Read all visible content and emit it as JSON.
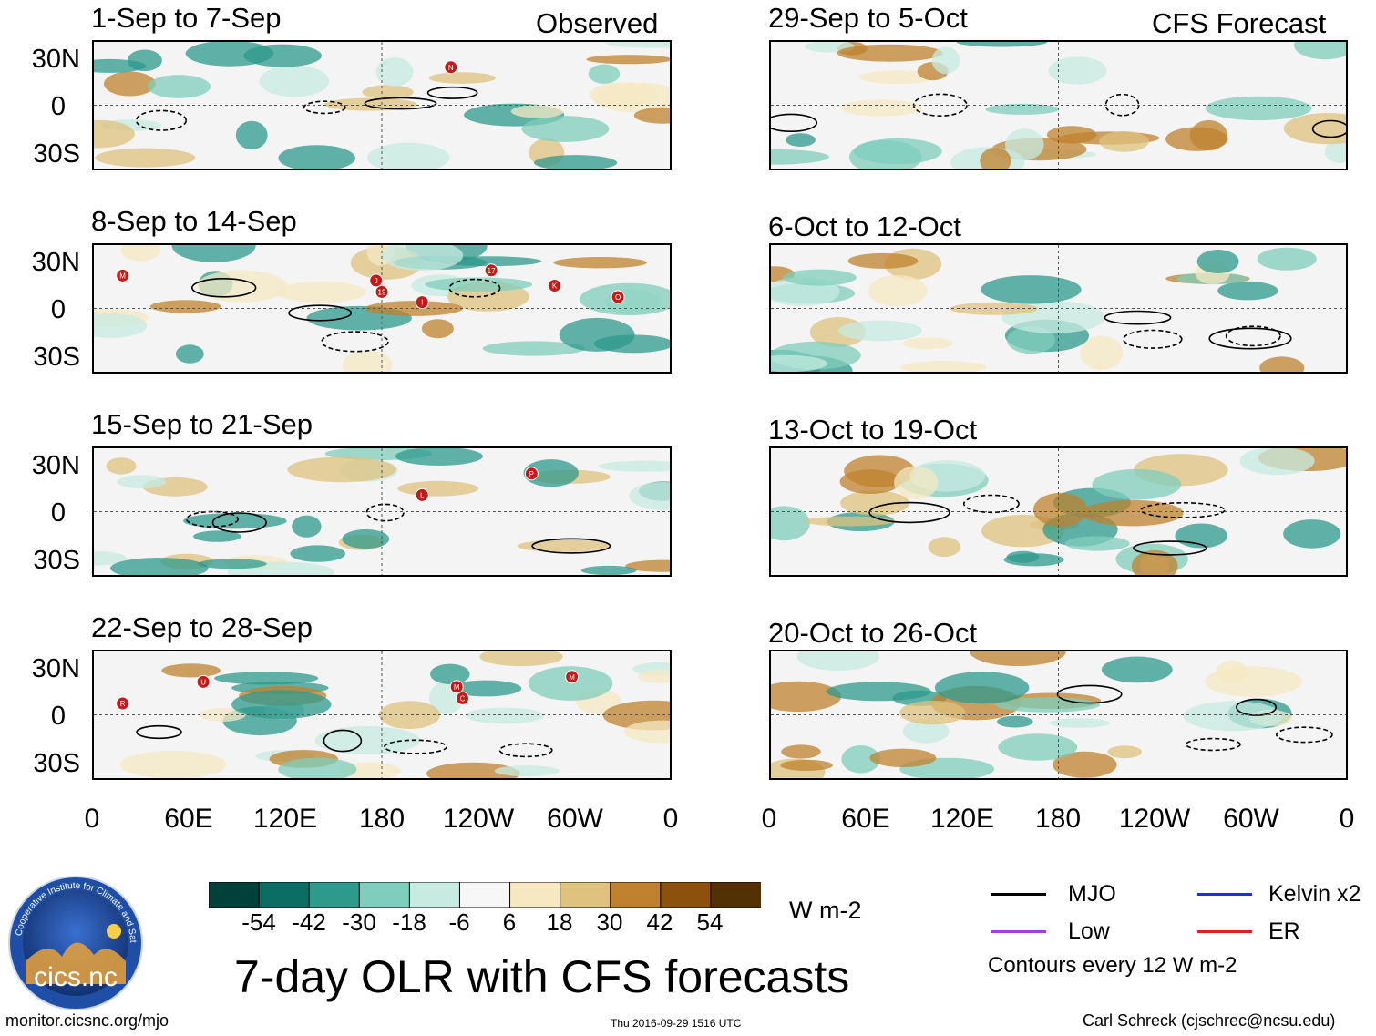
{
  "left_column": {
    "header_tag": "Observed",
    "panels": [
      {
        "title": "1-Sep to 7-Sep",
        "storms": [
          "N"
        ]
      },
      {
        "title": "8-Sep to 14-Sep",
        "storms": [
          "17",
          "19",
          "M",
          "O",
          "J",
          "I",
          "K"
        ]
      },
      {
        "title": "15-Sep to 21-Sep",
        "storms": [
          "P",
          "L"
        ]
      },
      {
        "title": "22-Sep to 28-Sep",
        "storms": [
          "M",
          "C",
          "U",
          "R",
          "M"
        ]
      }
    ]
  },
  "right_column": {
    "header_tag": "CFS Forecast",
    "panels": [
      {
        "title": "29-Sep to 5-Oct"
      },
      {
        "title": "6-Oct to 12-Oct"
      },
      {
        "title": "13-Oct to 19-Oct"
      },
      {
        "title": "20-Oct to 26-Oct"
      }
    ]
  },
  "axes": {
    "lat_labels": [
      "30N",
      "0",
      "30S"
    ],
    "lon_labels": [
      "0",
      "60E",
      "120E",
      "180",
      "120W",
      "60W",
      "0"
    ]
  },
  "colorbar": {
    "ticks": [
      "-54",
      "-42",
      "-30",
      "-18",
      "-6",
      "6",
      "18",
      "30",
      "42",
      "54"
    ],
    "colors": [
      "#01413a",
      "#0a6e63",
      "#2e9a8c",
      "#7fcdbb",
      "#c7ebe1",
      "#f7f7f7",
      "#f6e8c3",
      "#dfc27d",
      "#bf812d",
      "#8c510a",
      "#543005"
    ],
    "units": "W m-2"
  },
  "title": "7-day OLR with CFS forecasts",
  "legend": {
    "items": [
      {
        "label": "MJO",
        "color": "#000000"
      },
      {
        "label": "Kelvin x2",
        "color": "#1f2ed6"
      },
      {
        "label": "Low",
        "color": "#a040e0"
      },
      {
        "label": "ER",
        "color": "#e02020"
      }
    ],
    "contour_note": "Contours every 12 W m-2"
  },
  "logo": {
    "text": "cics.nc",
    "ring_text": "Cooperative Institute for Climate and Satellites"
  },
  "footer": {
    "url": "monitor.cicsnc.org/mjo",
    "timestamp": "Thu 2016-09-29 1516 UTC",
    "author": "Carl Schreck (cjschrec@ncsu.edu)"
  }
}
